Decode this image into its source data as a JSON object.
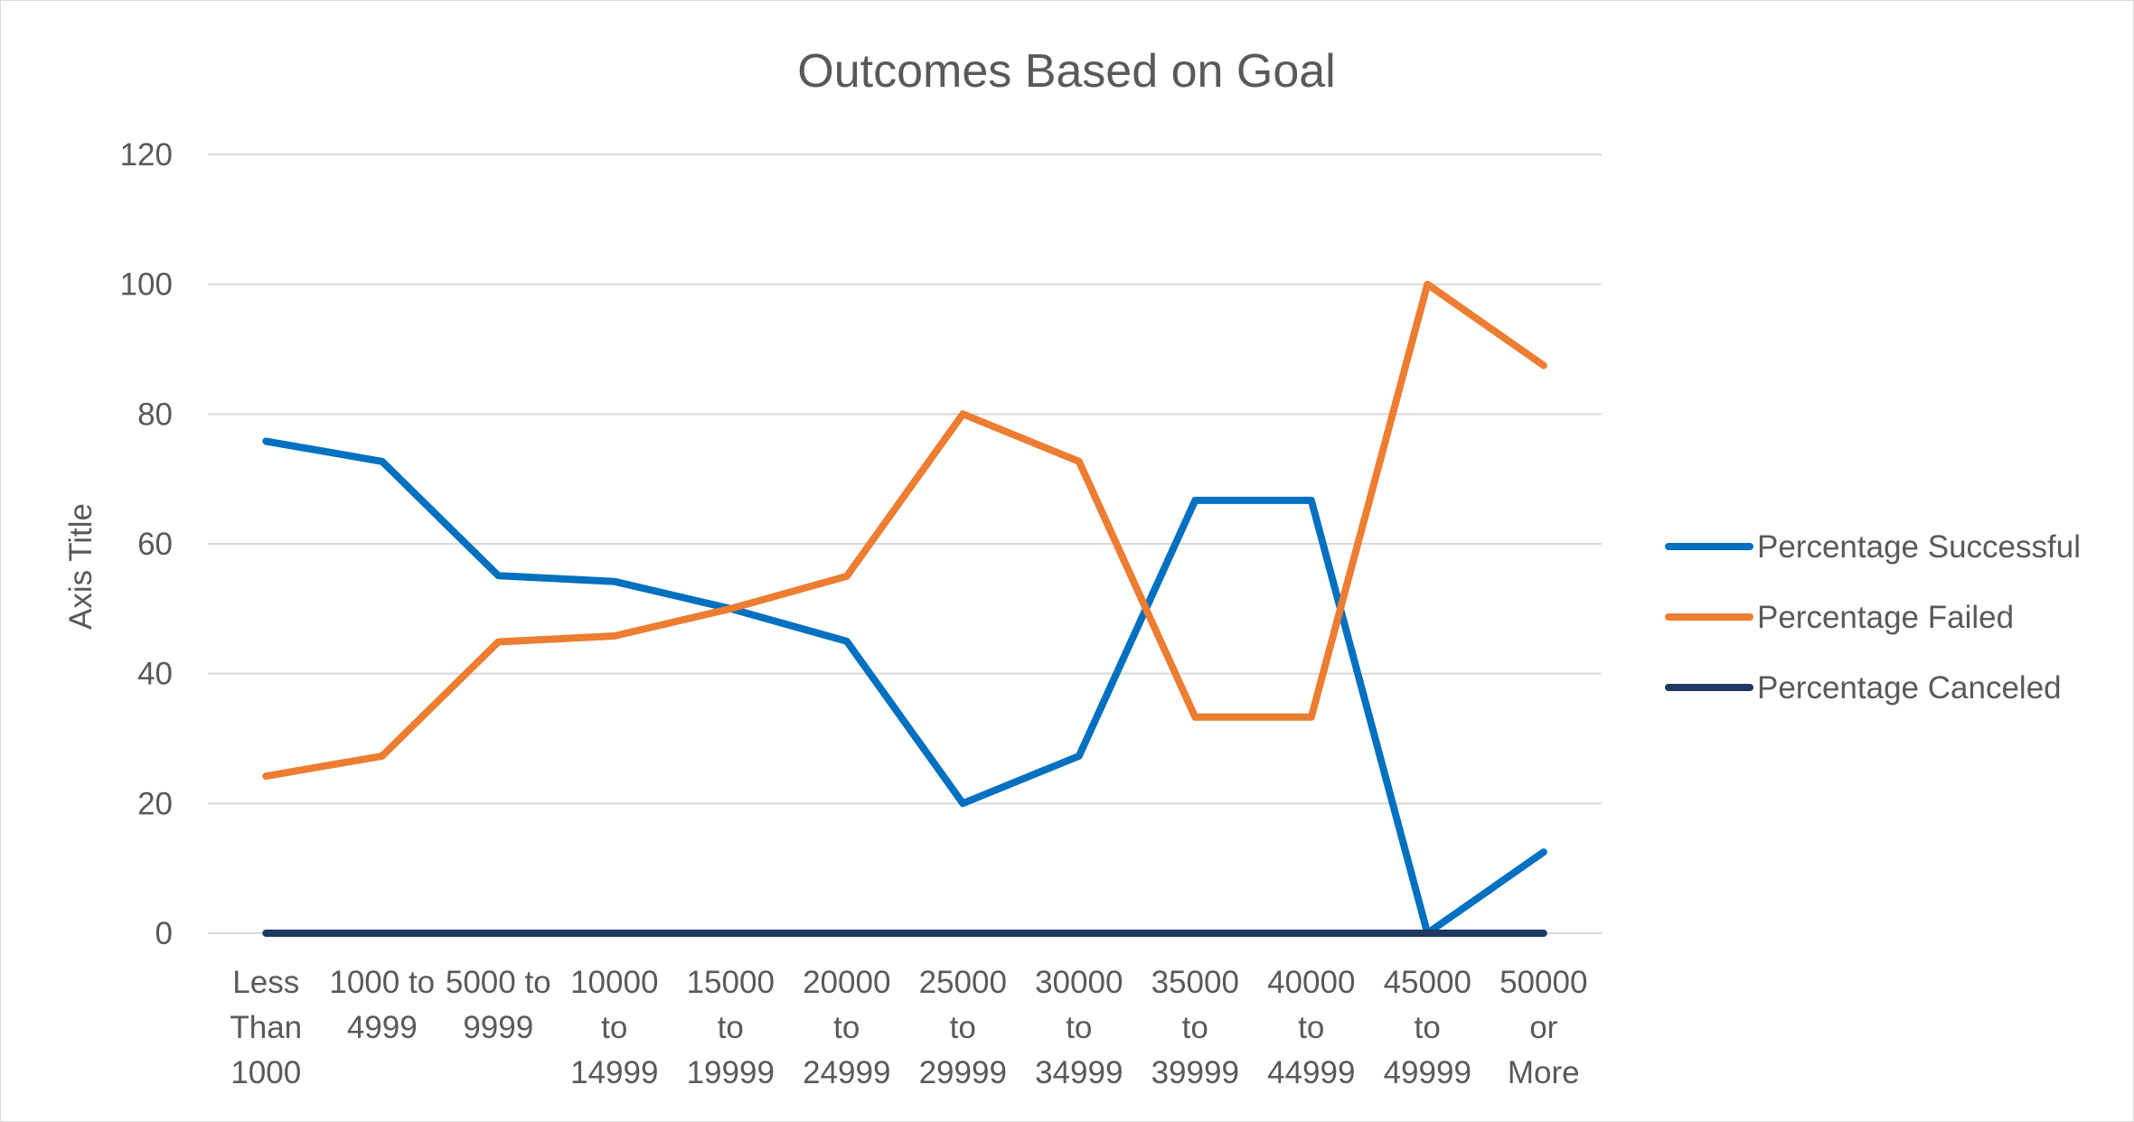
{
  "chart_data": {
    "type": "line",
    "title": "Outcomes Based on Goal",
    "ylabel": "Axis Title",
    "xlabel": "",
    "ylim": [
      0,
      120
    ],
    "ytick_step": 20,
    "grid": true,
    "legend_position": "right",
    "categories": [
      "Less Than 1000",
      "1000 to 4999",
      "5000 to 9999",
      "10000 to 14999",
      "15000 to 19999",
      "20000 to 24999",
      "25000 to 29999",
      "30000 to 34999",
      "35000 to 39999",
      "40000 to 44999",
      "45000 to 49999",
      "50000 or More"
    ],
    "category_label_lines": [
      [
        "Less",
        "Than",
        "1000"
      ],
      [
        "1000 to",
        "4999"
      ],
      [
        "5000 to",
        "9999"
      ],
      [
        "10000",
        "to",
        "14999"
      ],
      [
        "15000",
        "to",
        "19999"
      ],
      [
        "20000",
        "to",
        "24999"
      ],
      [
        "25000",
        "to",
        "29999"
      ],
      [
        "30000",
        "to",
        "34999"
      ],
      [
        "35000",
        "to",
        "39999"
      ],
      [
        "40000",
        "to",
        "44999"
      ],
      [
        "45000",
        "to",
        "49999"
      ],
      [
        "50000",
        "or",
        "More"
      ]
    ],
    "series": [
      {
        "name": "Percentage Successful",
        "color": "#0070C0",
        "values": [
          75.8,
          72.7,
          55.1,
          54.2,
          50.0,
          45.0,
          20.0,
          27.3,
          66.7,
          66.7,
          0,
          12.5
        ]
      },
      {
        "name": "Percentage Failed",
        "color": "#ED7D31",
        "values": [
          24.2,
          27.3,
          44.9,
          45.8,
          50.0,
          55.0,
          80.0,
          72.7,
          33.3,
          33.3,
          100,
          87.5
        ]
      },
      {
        "name": "Percentage Canceled",
        "color": "#1F3864",
        "values": [
          0,
          0,
          0,
          0,
          0,
          0,
          0,
          0,
          0,
          0,
          0,
          0
        ]
      }
    ]
  }
}
